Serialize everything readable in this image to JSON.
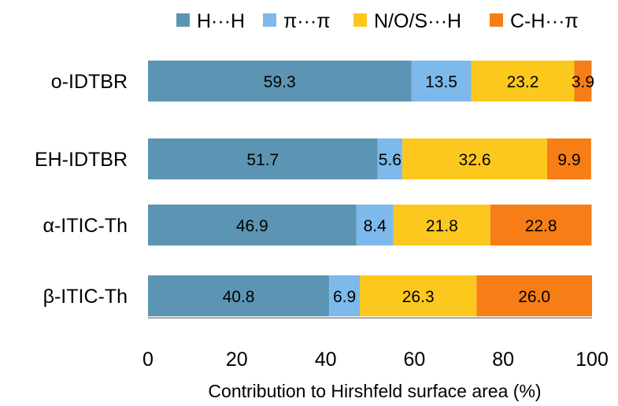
{
  "chart_data": {
    "type": "bar",
    "orientation": "horizontal",
    "stacked": true,
    "categories": [
      "o-IDTBR",
      "EH-IDTBR",
      "α-ITIC-Th",
      "β-ITIC-Th"
    ],
    "series": [
      {
        "name": "H···H",
        "color": "#5b95b3",
        "values": [
          59.3,
          51.7,
          46.9,
          40.8
        ]
      },
      {
        "name": "π···π",
        "color": "#7db9ea",
        "values": [
          13.5,
          5.6,
          8.4,
          6.9
        ]
      },
      {
        "name": "N/O/S···H",
        "color": "#fdc81e",
        "values": [
          23.2,
          32.6,
          21.8,
          26.3
        ]
      },
      {
        "name": "C-H···π",
        "color": "#f77d16",
        "values": [
          3.9,
          9.9,
          22.8,
          26.0
        ]
      }
    ],
    "value_labels": [
      [
        "59.3",
        "51.7",
        "46.9",
        "40.8"
      ],
      [
        "13.5",
        "5.6",
        "8.4",
        "6.9"
      ],
      [
        "23.2",
        "32.6",
        "21.8",
        "26.3"
      ],
      [
        "3.9",
        "9.9",
        "22.8",
        "26.0"
      ]
    ],
    "xlim": [
      0,
      100
    ],
    "x_ticks": [
      "0",
      "20",
      "40",
      "60",
      "80",
      "100"
    ],
    "xlabel": "Contribution to Hirshfeld surface area (%)",
    "ylabel": "",
    "title": "",
    "legend_position": "top",
    "grid": false
  }
}
